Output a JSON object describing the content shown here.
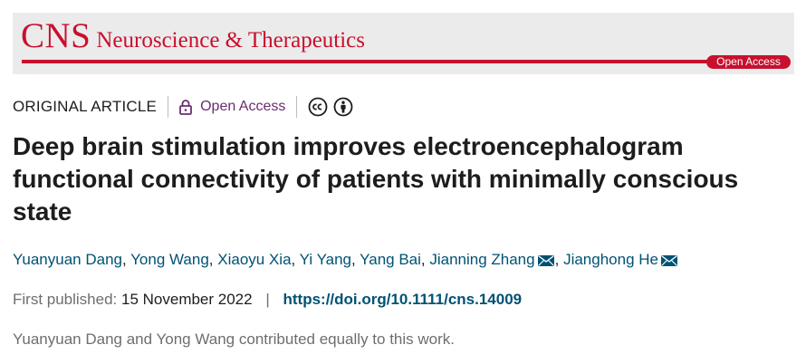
{
  "journal": {
    "abbreviation": "CNS",
    "name": "Neuroscience & Therapeutics",
    "badge": "Open Access",
    "brand_color": "#c8102e"
  },
  "article": {
    "type": "ORIGINAL ARTICLE",
    "access_label": "Open Access",
    "access_icon": "lock-icon",
    "license_icons": [
      "cc-icon",
      "by-attribution-icon"
    ],
    "title": "Deep brain stimulation improves electroencephalogram functional connectivity of patients with minimally conscious state",
    "authors": [
      {
        "name": "Yuanyuan Dang",
        "corresponding": false
      },
      {
        "name": "Yong Wang",
        "corresponding": false
      },
      {
        "name": "Xiaoyu Xia",
        "corresponding": false
      },
      {
        "name": "Yi Yang",
        "corresponding": false
      },
      {
        "name": "Yang Bai",
        "corresponding": false
      },
      {
        "name": "Jianning Zhang",
        "corresponding": true
      },
      {
        "name": "Jianghong He",
        "corresponding": true
      }
    ],
    "author_separator": ", ",
    "first_published_label": "First published:",
    "first_published_date": "15 November 2022",
    "pub_separator": "|",
    "doi": "https://doi.org/10.1111/cns.14009",
    "contribution_note": "Yuanyuan Dang and Yong Wang contributed equally to this work.",
    "link_color": "#005274"
  }
}
